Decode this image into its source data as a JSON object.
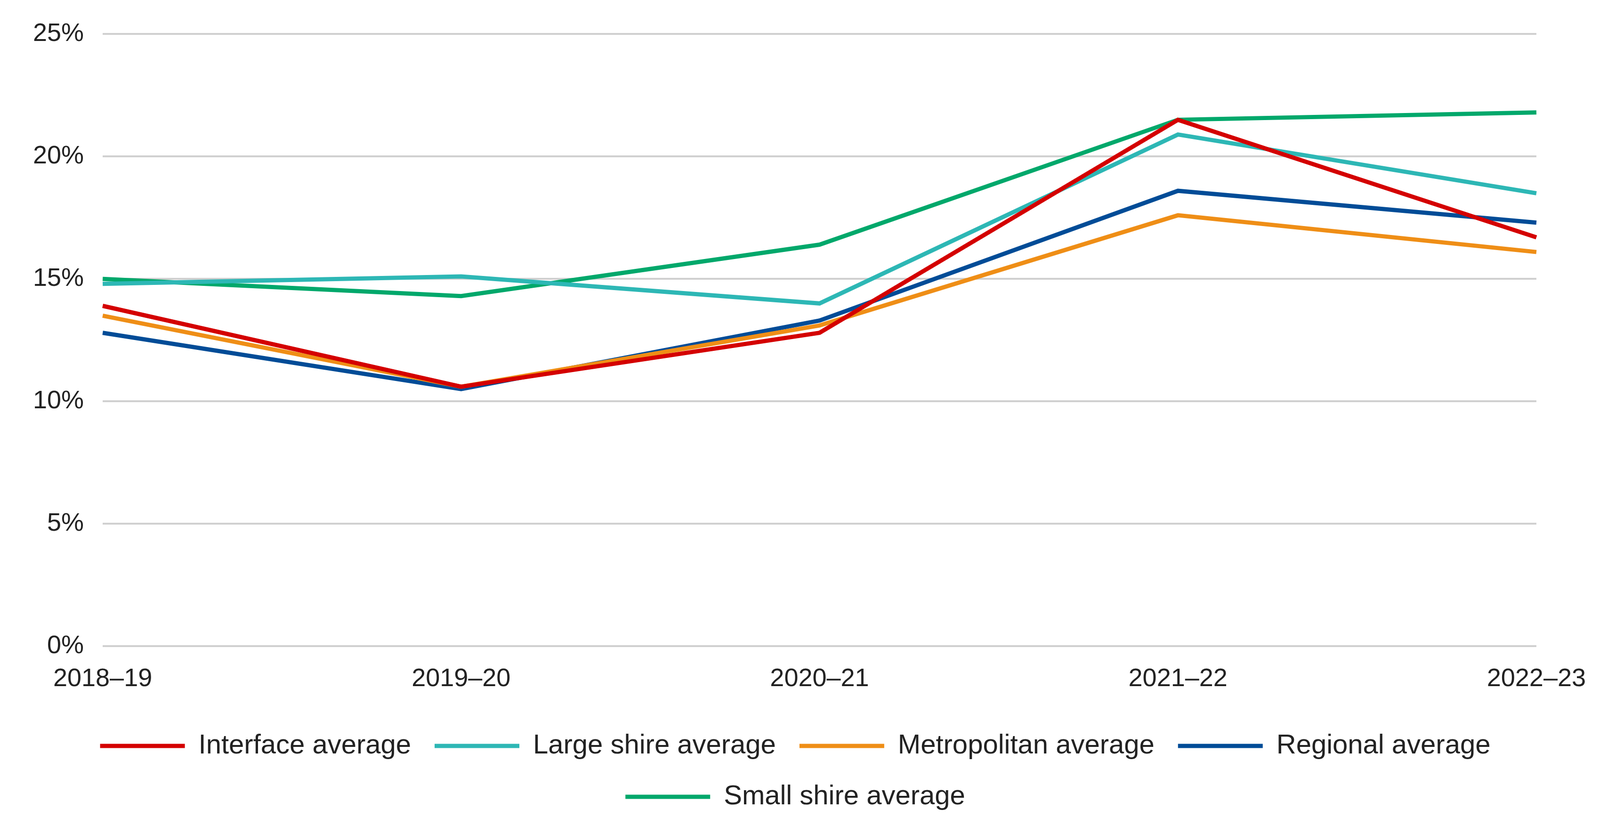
{
  "chart_data": {
    "type": "line",
    "categories": [
      "2018–19",
      "2019–20",
      "2020–21",
      "2021–22",
      "2022–23"
    ],
    "series": [
      {
        "name": "Interface average",
        "color": "#d40000",
        "values": [
          13.9,
          10.6,
          12.8,
          21.5,
          16.7
        ]
      },
      {
        "name": "Large shire average",
        "color": "#2db7b5",
        "values": [
          14.8,
          15.1,
          14.0,
          20.9,
          18.5
        ]
      },
      {
        "name": "Metropolitan average",
        "color": "#ef8e16",
        "values": [
          13.5,
          10.6,
          13.1,
          17.6,
          16.1
        ]
      },
      {
        "name": "Regional average",
        "color": "#004c97",
        "values": [
          12.8,
          10.5,
          13.3,
          18.6,
          17.3
        ]
      },
      {
        "name": "Small shire average",
        "color": "#00a86b",
        "values": [
          15.0,
          14.3,
          16.4,
          21.5,
          21.8
        ]
      }
    ],
    "ylim": [
      0,
      25
    ],
    "yticks": [
      {
        "value": 0,
        "label": "0%"
      },
      {
        "value": 5,
        "label": "5%"
      },
      {
        "value": 10,
        "label": "10%"
      },
      {
        "value": 15,
        "label": "15%"
      },
      {
        "value": 20,
        "label": "20%"
      },
      {
        "value": 25,
        "label": "25%"
      }
    ],
    "grid": true,
    "legend": "bottom"
  }
}
